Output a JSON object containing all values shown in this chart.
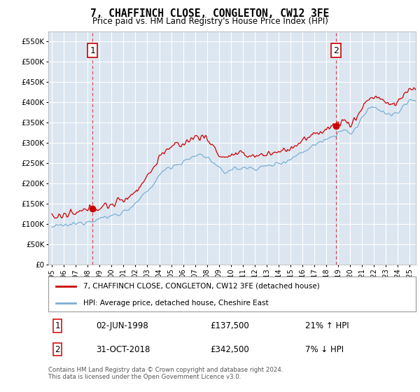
{
  "title": "7, CHAFFINCH CLOSE, CONGLETON, CW12 3FE",
  "subtitle": "Price paid vs. HM Land Registry's House Price Index (HPI)",
  "ylim": [
    0,
    575000
  ],
  "yticks": [
    0,
    50000,
    100000,
    150000,
    200000,
    250000,
    300000,
    350000,
    400000,
    450000,
    500000,
    550000
  ],
  "ytick_labels": [
    "£0",
    "£50K",
    "£100K",
    "£150K",
    "£200K",
    "£250K",
    "£300K",
    "£350K",
    "£400K",
    "£450K",
    "£500K",
    "£550K"
  ],
  "xtick_years": [
    1995,
    1996,
    1997,
    1998,
    1999,
    2000,
    2001,
    2002,
    2003,
    2004,
    2005,
    2006,
    2007,
    2008,
    2009,
    2010,
    2011,
    2012,
    2013,
    2014,
    2015,
    2016,
    2017,
    2018,
    2019,
    2020,
    2021,
    2022,
    2023,
    2024,
    2025
  ],
  "xmin": 1994.7,
  "xmax": 2025.5,
  "marker1_x": 1998.42,
  "marker1_label": "1",
  "marker1_y": 137500,
  "marker2_x": 2018.83,
  "marker2_label": "2",
  "marker2_y": 342500,
  "legend_red": "7, CHAFFINCH CLOSE, CONGLETON, CW12 3FE (detached house)",
  "legend_blue": "HPI: Average price, detached house, Cheshire East",
  "annot1_date": "02-JUN-1998",
  "annot1_price": "£137,500",
  "annot1_hpi": "21% ↑ HPI",
  "annot2_date": "31-OCT-2018",
  "annot2_price": "£342,500",
  "annot2_hpi": "7% ↓ HPI",
  "footer": "Contains HM Land Registry data © Crown copyright and database right 2024.\nThis data is licensed under the Open Government Licence v3.0.",
  "bg_color": "#dce6f1",
  "red_color": "#cc0000",
  "blue_color": "#7bafd4",
  "grid_color": "#ffffff"
}
